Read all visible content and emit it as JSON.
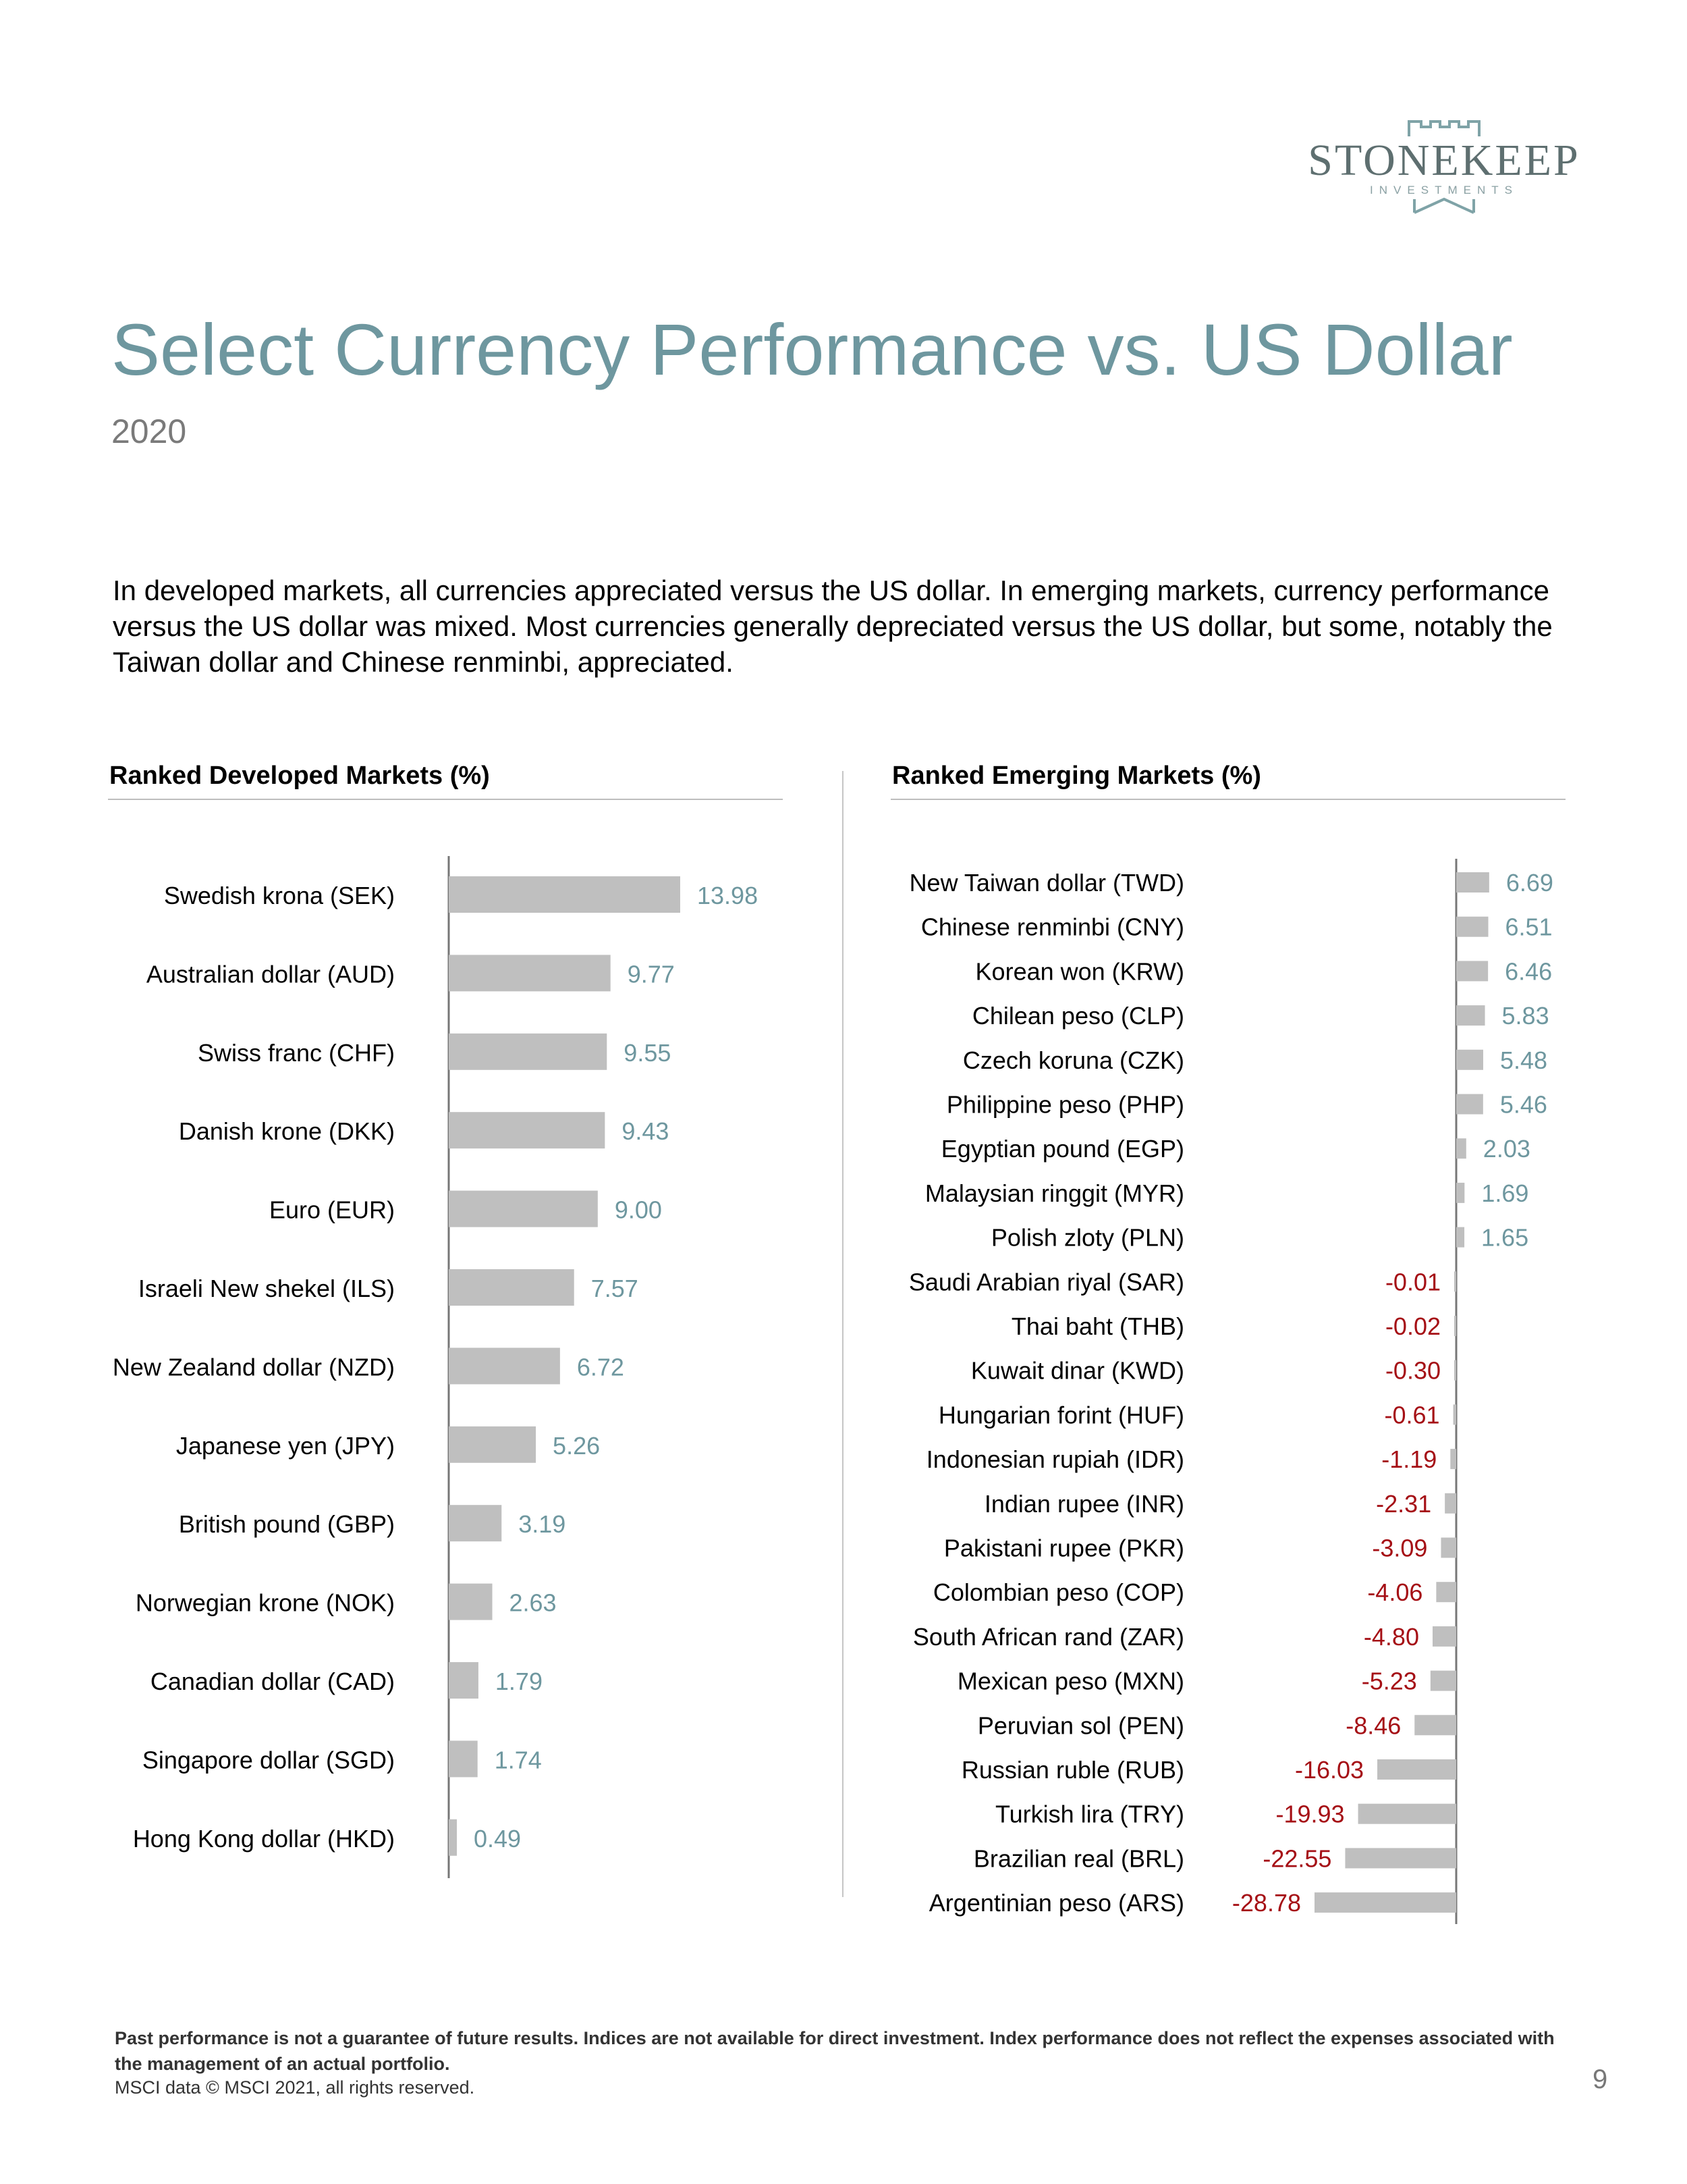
{
  "brand": {
    "name": "STONEKEEP",
    "sub": "INVESTMENTS",
    "color": "#5e6f70"
  },
  "header": {
    "title": "Select Currency Performance vs. US Dollar",
    "subtitle": "2020"
  },
  "intro": "In developed markets, all currencies appreciated versus the US dollar. In emerging markets, currency performance versus the US dollar was mixed. Most currencies generally depreciated versus the US dollar, but some, notably the Taiwan dollar and Chinese renminbi, appreciated.",
  "colors": {
    "bar": "#bfbfbf",
    "positive_label": "#6e979f",
    "negative_label": "#a50f15",
    "axis": "#777777"
  },
  "chart_data": [
    {
      "type": "bar",
      "orientation": "horizontal",
      "title": "Ranked Developed Markets (%)",
      "categories": [
        "Swedish krona (SEK)",
        "Australian dollar (AUD)",
        "Swiss franc (CHF)",
        "Danish krone (DKK)",
        "Euro (EUR)",
        "Israeli New shekel (ILS)",
        "New Zealand dollar (NZD)",
        "Japanese yen (JPY)",
        "British pound (GBP)",
        "Norwegian krone (NOK)",
        "Canadian dollar (CAD)",
        "Singapore dollar (SGD)",
        "Hong Kong dollar (HKD)"
      ],
      "values": [
        13.98,
        9.77,
        9.55,
        9.43,
        9.0,
        7.57,
        6.72,
        5.26,
        3.19,
        2.63,
        1.79,
        1.74,
        0.49
      ],
      "labels": [
        "13.98",
        "9.77",
        "9.55",
        "9.43",
        "9.00",
        "7.57",
        "6.72",
        "5.26",
        "3.19",
        "2.63",
        "1.79",
        "1.74",
        "0.49"
      ],
      "xlim": [
        0,
        14
      ]
    },
    {
      "type": "bar",
      "orientation": "horizontal",
      "title": "Ranked Emerging Markets (%)",
      "categories": [
        "New Taiwan dollar (TWD)",
        "Chinese renminbi (CNY)",
        "Korean won (KRW)",
        "Chilean peso (CLP)",
        "Czech koruna (CZK)",
        "Philippine peso (PHP)",
        "Egyptian pound (EGP)",
        "Malaysian ringgit (MYR)",
        "Polish zloty (PLN)",
        "Saudi Arabian riyal (SAR)",
        "Thai baht (THB)",
        "Kuwait dinar (KWD)",
        "Hungarian forint (HUF)",
        "Indonesian rupiah (IDR)",
        "Indian rupee (INR)",
        "Pakistani rupee (PKR)",
        "Colombian peso (COP)",
        "South African rand (ZAR)",
        "Mexican peso (MXN)",
        "Peruvian sol (PEN)",
        "Russian ruble (RUB)",
        "Turkish lira (TRY)",
        "Brazilian real (BRL)",
        "Argentinian peso (ARS)"
      ],
      "values": [
        6.69,
        6.51,
        6.46,
        5.83,
        5.48,
        5.46,
        2.03,
        1.69,
        1.65,
        -0.01,
        -0.02,
        -0.3,
        -0.61,
        -1.19,
        -2.31,
        -3.09,
        -4.06,
        -4.8,
        -5.23,
        -8.46,
        -16.03,
        -19.93,
        -22.55,
        -28.78
      ],
      "labels": [
        "6.69",
        "6.51",
        "6.46",
        "5.83",
        "5.48",
        "5.46",
        "2.03",
        "1.69",
        "1.65",
        "-0.01",
        "-0.02",
        "-0.30",
        "-0.61",
        "-1.19",
        "-2.31",
        "-3.09",
        "-4.06",
        "-4.80",
        "-5.23",
        "-8.46",
        "-16.03",
        "-19.93",
        "-22.55",
        "-28.78"
      ],
      "xlim": [
        -30,
        7
      ]
    }
  ],
  "footer": {
    "disclaimer": "Past performance is not a guarantee of future results. Indices are not available for direct investment. Index performance does not reflect the expenses associated with the management of an actual portfolio.",
    "source": "MSCI data © MSCI 2021, all rights reserved.",
    "page_number": "9"
  }
}
